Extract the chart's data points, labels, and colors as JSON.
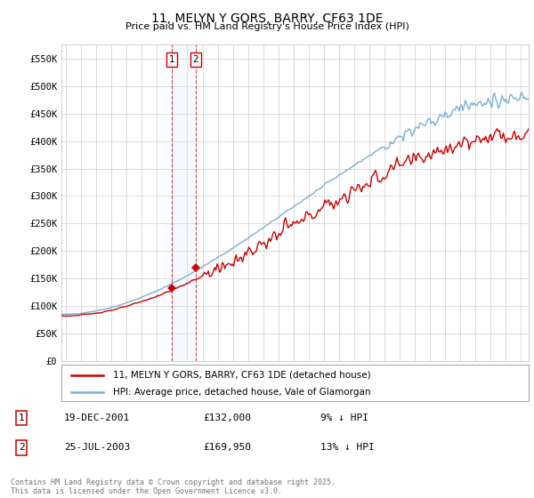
{
  "title": "11, MELYN Y GORS, BARRY, CF63 1DE",
  "subtitle": "Price paid vs. HM Land Registry's House Price Index (HPI)",
  "ylabel_ticks": [
    "£0",
    "£50K",
    "£100K",
    "£150K",
    "£200K",
    "£250K",
    "£300K",
    "£350K",
    "£400K",
    "£450K",
    "£500K",
    "£550K"
  ],
  "ylim": [
    0,
    575000
  ],
  "yticks": [
    0,
    50000,
    100000,
    150000,
    200000,
    250000,
    300000,
    350000,
    400000,
    450000,
    500000,
    550000
  ],
  "xlim_start": 1994.7,
  "xlim_end": 2025.5,
  "transactions": [
    {
      "label": "1",
      "date": "19-DEC-2001",
      "price": 132000,
      "year": 2001.96,
      "hpi_pct": "9% ↓ HPI"
    },
    {
      "label": "2",
      "date": "25-JUL-2003",
      "price": 169950,
      "year": 2003.56,
      "hpi_pct": "13% ↓ HPI"
    }
  ],
  "legend_line1": "11, MELYN Y GORS, BARRY, CF63 1DE (detached house)",
  "legend_line2": "HPI: Average price, detached house, Vale of Glamorgan",
  "footer": "Contains HM Land Registry data © Crown copyright and database right 2025.\nThis data is licensed under the Open Government Licence v3.0.",
  "red_color": "#cc0000",
  "blue_color": "#7ab0d4",
  "shade_color": "#ddeeff",
  "background_color": "#ffffff",
  "grid_color": "#cccccc"
}
